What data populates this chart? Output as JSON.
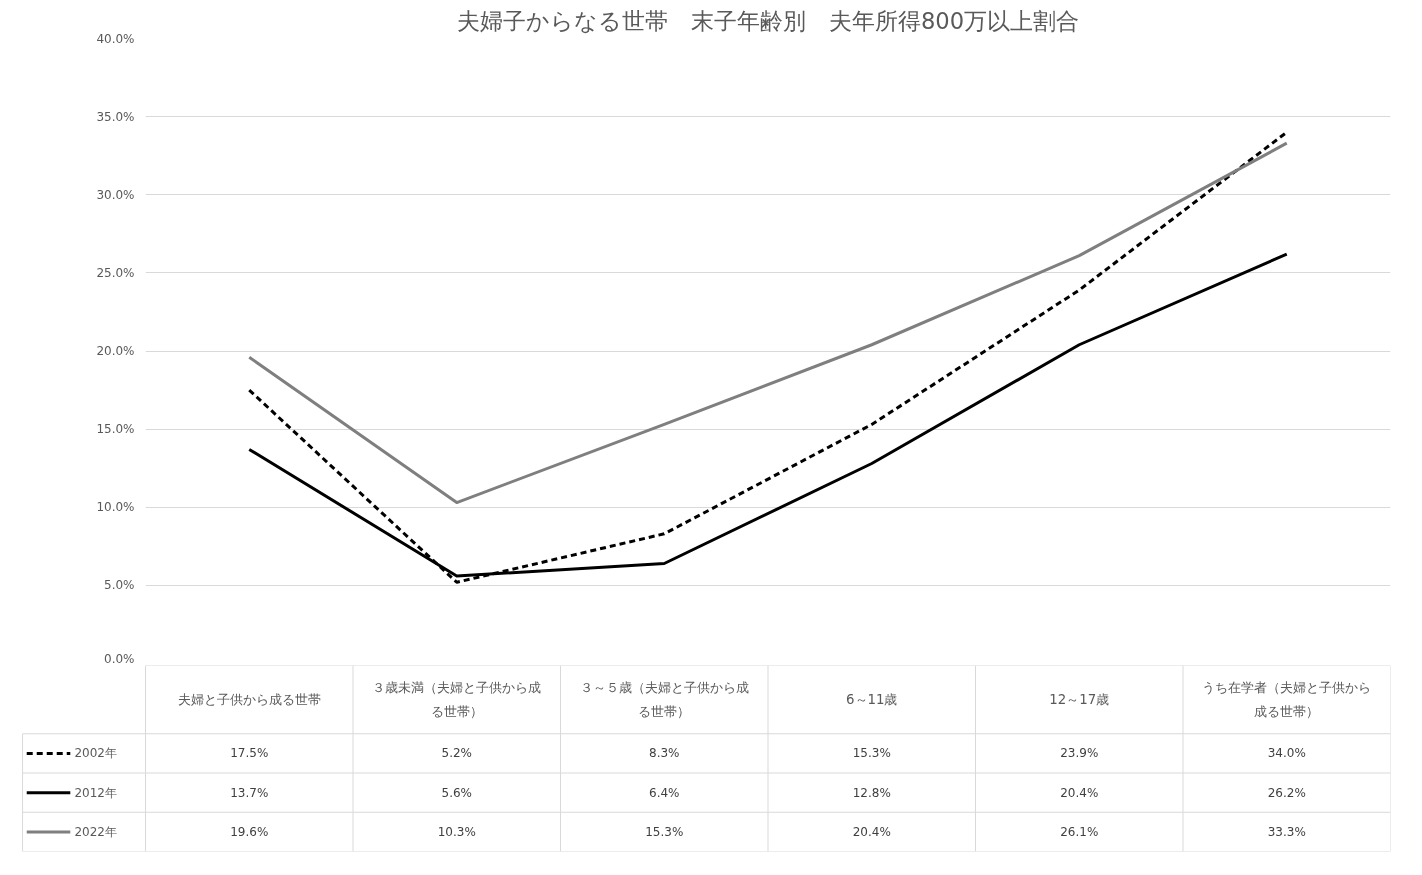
{
  "chart_data": {
    "type": "line",
    "title": "夫婦子からなる世帯　末子年齢別　夫年所得800万以上割合",
    "categories": [
      "夫婦と子供から成る世帯",
      "３歳未満（夫婦と子供から成る世帯）",
      "３～５歳（夫婦と子供から成る世帯）",
      "6～11歳",
      "12～17歳",
      "うち在学者（夫婦と子供から成る世帯）"
    ],
    "ylim": [
      0,
      40
    ],
    "yticks": [
      {
        "value": 0,
        "label": "0.0%"
      },
      {
        "value": 5,
        "label": "5.0%"
      },
      {
        "value": 10,
        "label": "10.0%"
      },
      {
        "value": 15,
        "label": "15.0%"
      },
      {
        "value": 20,
        "label": "20.0%"
      },
      {
        "value": 25,
        "label": "25.0%"
      },
      {
        "value": 30,
        "label": "30.0%"
      },
      {
        "value": 35,
        "label": "35.0%"
      },
      {
        "value": 40,
        "label": "40.0%"
      }
    ],
    "grid": "y",
    "legend": "bottom left",
    "marker": "none",
    "series": [
      {
        "name": "2002年",
        "color": "#000000",
        "line_style": "dashed",
        "values": [
          17.5,
          5.2,
          8.3,
          15.3,
          23.9,
          34.0
        ],
        "value_labels": [
          "17.5%",
          "5.2%",
          "8.3%",
          "15.3%",
          "23.9%",
          "34.0%"
        ]
      },
      {
        "name": "2012年",
        "color": "#000000",
        "line_style": "solid",
        "values": [
          13.7,
          5.6,
          6.4,
          12.8,
          20.4,
          26.2
        ],
        "value_labels": [
          "13.7%",
          "5.6%",
          "6.4%",
          "12.8%",
          "20.4%",
          "26.2%"
        ]
      },
      {
        "name": "2022年",
        "color": "#7f7f7f",
        "line_style": "solid",
        "values": [
          19.6,
          10.3,
          15.3,
          20.4,
          26.1,
          33.3
        ],
        "value_labels": [
          "19.6%",
          "10.3%",
          "15.3%",
          "20.4%",
          "26.1%",
          "33.3%"
        ]
      }
    ]
  }
}
